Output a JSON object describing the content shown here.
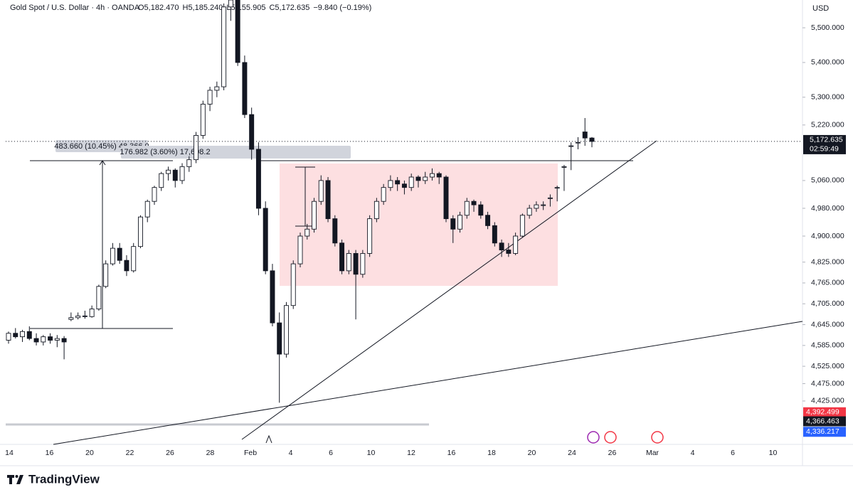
{
  "chart_data": {
    "type": "candlestick",
    "title": "Gold Spot / U.S. Dollar · 4h · OANDA",
    "ohlc_readout": [
      "O5,182.470",
      "H5,185.240",
      "L5,155.905",
      "C5,172.635",
      "−9.840 (−0.19%)"
    ],
    "currency": "USD",
    "up_color": "#ffffff",
    "down_color": "#131722",
    "open": [
      4600,
      4620,
      4610,
      4625,
      4605,
      4595,
      4610,
      4600,
      4605,
      4660,
      4665,
      4670,
      4668,
      4690,
      4755,
      4820,
      4865,
      4830,
      4800,
      4870,
      4955,
      5000,
      5040,
      5080,
      5090,
      5060,
      5100,
      5120,
      5190,
      5280,
      5320,
      5330,
      5560,
      5580,
      5400,
      5250,
      5150,
      4980,
      4800,
      4650,
      4560,
      4700,
      4820,
      4900,
      4920,
      5000,
      5060,
      4950,
      4880,
      4800,
      4850,
      4790,
      4850,
      4950,
      5000,
      5040,
      5060,
      5050,
      5040,
      5070,
      5060,
      5070,
      5080,
      5070,
      4950,
      4920,
      4960,
      5000,
      4990,
      4960,
      4930,
      4880,
      4860,
      4850,
      4900,
      4960,
      4980,
      4990,
      5010,
      5040,
      5100,
      5160,
      5170,
      5200,
      5182.47
    ],
    "high": [
      4625,
      4635,
      4630,
      4640,
      4620,
      4615,
      4620,
      4615,
      4612,
      4680,
      4680,
      4685,
      4700,
      4760,
      4830,
      4880,
      4880,
      4845,
      4880,
      4960,
      5005,
      5045,
      5085,
      5100,
      5095,
      5110,
      5130,
      5200,
      5290,
      5330,
      5345,
      5570,
      5600,
      5590,
      5420,
      5270,
      5170,
      5000,
      4820,
      4680,
      4710,
      4830,
      4910,
      4935,
      5010,
      5075,
      5070,
      4960,
      4890,
      4860,
      4860,
      4860,
      4960,
      5010,
      5050,
      5075,
      5070,
      5060,
      5080,
      5075,
      5085,
      5095,
      5085,
      5075,
      4960,
      4970,
      5010,
      5005,
      5000,
      4970,
      4940,
      4890,
      4880,
      4910,
      4965,
      4990,
      5000,
      5000,
      5020,
      5045,
      5105,
      5170,
      5185,
      5240,
      5185.24
    ],
    "low": [
      4590,
      4605,
      4595,
      4600,
      4585,
      4585,
      4590,
      4580,
      4545,
      4655,
      4660,
      4662,
      4665,
      4685,
      4750,
      4815,
      4820,
      4785,
      4795,
      4865,
      4940,
      4990,
      5030,
      5060,
      5040,
      5050,
      5085,
      5110,
      5180,
      5260,
      5300,
      5320,
      5520,
      5390,
      5240,
      5120,
      4960,
      4790,
      4640,
      4420,
      4550,
      4690,
      4810,
      4890,
      4910,
      4990,
      4940,
      4870,
      4790,
      4790,
      4660,
      4780,
      4840,
      4940,
      4990,
      5030,
      5030,
      5020,
      5030,
      5040,
      5050,
      5060,
      5050,
      4940,
      4880,
      4910,
      4950,
      4970,
      4950,
      4920,
      4870,
      4840,
      4840,
      4845,
      4895,
      4950,
      4970,
      4975,
      4985,
      5000,
      5030,
      5090,
      5150,
      5160,
      5155.905
    ],
    "close": [
      4620,
      4610,
      4625,
      4605,
      4595,
      4610,
      4600,
      4605,
      4595,
      4665,
      4670,
      4668,
      4690,
      4755,
      4820,
      4865,
      4830,
      4800,
      4870,
      4955,
      5000,
      5040,
      5080,
      5090,
      5060,
      5100,
      5120,
      5190,
      5280,
      5320,
      5330,
      5560,
      5580,
      5400,
      5250,
      5150,
      4980,
      4800,
      4650,
      4560,
      4700,
      4820,
      4900,
      4920,
      5000,
      5060,
      4950,
      4880,
      4800,
      4850,
      4790,
      4850,
      4950,
      5000,
      5040,
      5060,
      5050,
      5040,
      5070,
      5060,
      5070,
      5080,
      5070,
      4950,
      4920,
      4960,
      5000,
      4990,
      4960,
      4930,
      4880,
      4860,
      4850,
      4900,
      4960,
      4980,
      4990,
      4990,
      5010,
      5040,
      5100,
      5160,
      5170,
      5182.47,
      5172.635
    ],
    "ylim": [
      4300,
      5580
    ],
    "yticks": [
      {
        "value": 5500,
        "label": "5,500.000"
      },
      {
        "value": 5400,
        "label": "5,400.000"
      },
      {
        "value": 5300,
        "label": "5,300.000"
      },
      {
        "value": 5220,
        "label": "5,220.000"
      },
      {
        "value": 5060,
        "label": "5,060.000"
      },
      {
        "value": 4980,
        "label": "4,980.000"
      },
      {
        "value": 4900,
        "label": "4,900.000"
      },
      {
        "value": 4825,
        "label": "4,825.000"
      },
      {
        "value": 4765,
        "label": "4,765.000"
      },
      {
        "value": 4705,
        "label": "4,705.000"
      },
      {
        "value": 4645,
        "label": "4,645.000"
      },
      {
        "value": 4585,
        "label": "4,585.000"
      },
      {
        "value": 4525,
        "label": "4,525.000"
      },
      {
        "value": 4475,
        "label": "4,475.000"
      },
      {
        "value": 4425,
        "label": "4,425.000"
      }
    ],
    "last_price": {
      "value": 5172.635,
      "label": "5,172.635"
    },
    "countdown": "02:59:49",
    "price_tags": [
      {
        "value": 4392.499,
        "label": "4,392.499",
        "color": "#f23645"
      },
      {
        "value": 4366.463,
        "label": "4,366.463",
        "color": "#131722"
      },
      {
        "value": 4336.217,
        "label": "4,336.217",
        "color": "#2962ff"
      }
    ],
    "x_axis_labels": [
      "14",
      "16",
      "20",
      "22",
      "26",
      "28",
      "Feb",
      "4",
      "6",
      "10",
      "12",
      "16",
      "18",
      "20",
      "24",
      "26",
      "Mar",
      "4",
      "6",
      "10"
    ],
    "measurements": [
      "483.660 (10.45%) 48,366.0",
      "176.982 (3.60%) 17,698.2"
    ],
    "brand": "TradingView"
  }
}
